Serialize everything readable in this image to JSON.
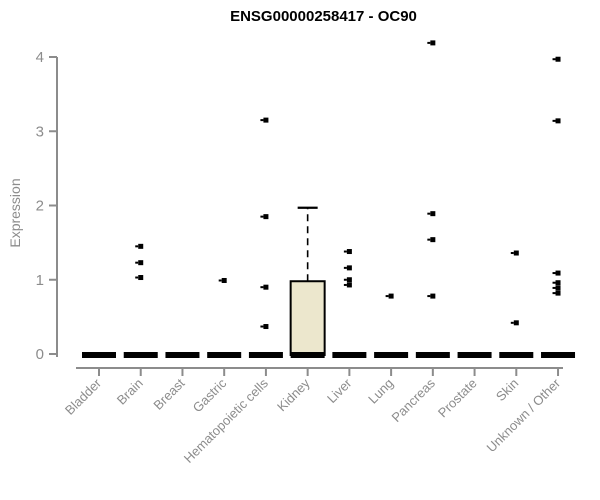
{
  "chart_data": {
    "type": "boxplot",
    "title": "ENSG00000258417 - OC90",
    "ylabel": "Expression",
    "xlabel": "",
    "y_ticks": [
      0,
      1,
      2,
      3,
      4
    ],
    "ylim": [
      0,
      4.3
    ],
    "grid": false,
    "x_label_rotation": 45,
    "categories": [
      "Bladder",
      "Brain",
      "Breast",
      "Gastric",
      "Hematopoietic cells",
      "Kidney",
      "Liver",
      "Lung",
      "Pancreas",
      "Prostate",
      "Skin",
      "Unknown / Other"
    ],
    "boxes": [
      {
        "label": "Bladder",
        "q1": 0,
        "median": 0,
        "q3": 0,
        "whisker_low": 0,
        "whisker_high": 0,
        "outliers": []
      },
      {
        "label": "Brain",
        "q1": 0,
        "median": 0,
        "q3": 0,
        "whisker_low": 0,
        "whisker_high": 0,
        "outliers": [
          1.45,
          1.23,
          1.03
        ]
      },
      {
        "label": "Breast",
        "q1": 0,
        "median": 0,
        "q3": 0,
        "whisker_low": 0,
        "whisker_high": 0,
        "outliers": []
      },
      {
        "label": "Gastric",
        "q1": 0,
        "median": 0,
        "q3": 0,
        "whisker_low": 0,
        "whisker_high": 0,
        "outliers": [
          0.99
        ]
      },
      {
        "label": "Hematopoietic cells",
        "q1": 0,
        "median": 0,
        "q3": 0,
        "whisker_low": 0,
        "whisker_high": 0,
        "outliers": [
          3.15,
          1.85,
          0.9,
          0.37
        ]
      },
      {
        "label": "Kidney",
        "q1": 0,
        "median": 0,
        "q3": 0.98,
        "whisker_low": 0,
        "whisker_high": 1.97,
        "outliers": []
      },
      {
        "label": "Liver",
        "q1": 0,
        "median": 0,
        "q3": 0,
        "whisker_low": 0,
        "whisker_high": 0,
        "outliers": [
          1.38,
          1.16,
          1.0,
          0.93
        ]
      },
      {
        "label": "Lung",
        "q1": 0,
        "median": 0,
        "q3": 0,
        "whisker_low": 0,
        "whisker_high": 0,
        "outliers": [
          0.78
        ]
      },
      {
        "label": "Pancreas",
        "q1": 0,
        "median": 0,
        "q3": 0,
        "whisker_low": 0,
        "whisker_high": 0,
        "outliers": [
          4.19,
          1.89,
          1.54,
          0.78
        ]
      },
      {
        "label": "Prostate",
        "q1": 0,
        "median": 0,
        "q3": 0,
        "whisker_low": 0,
        "whisker_high": 0,
        "outliers": []
      },
      {
        "label": "Skin",
        "q1": 0,
        "median": 0,
        "q3": 0,
        "whisker_low": 0,
        "whisker_high": 0,
        "outliers": [
          1.36,
          0.42
        ]
      },
      {
        "label": "Unknown / Other",
        "q1": 0,
        "median": 0,
        "q3": 0,
        "whisker_low": 0,
        "whisker_high": 0,
        "outliers": [
          3.97,
          3.14,
          1.09,
          0.96,
          0.89,
          0.82
        ]
      }
    ],
    "colors": {
      "box_fill": "#ece7cd",
      "box_stroke": "#000000",
      "zero_bar": "#000000",
      "outlier": "#000000",
      "axis": "#8c8c8c",
      "tick_label": "#8c8c8c",
      "title": "#000000"
    }
  }
}
